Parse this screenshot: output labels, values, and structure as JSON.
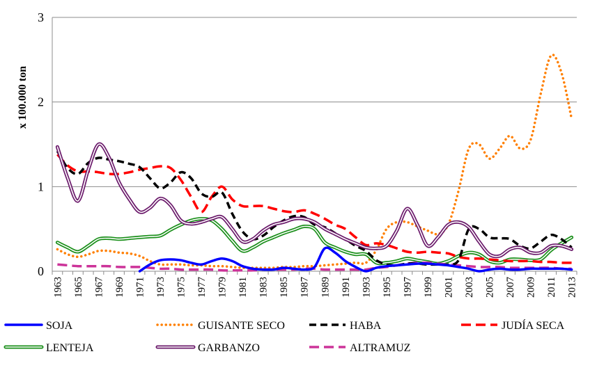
{
  "chart_data": {
    "type": "line",
    "ylabel": "x 100.000 ton",
    "xlabel": "",
    "ylim": [
      0,
      3
    ],
    "yticks": [
      "0",
      "1",
      "2",
      "3"
    ],
    "grid": "horizontal",
    "legend_position": "bottom",
    "x": [
      1963,
      1964,
      1965,
      1966,
      1967,
      1968,
      1969,
      1970,
      1971,
      1972,
      1973,
      1974,
      1975,
      1976,
      1977,
      1978,
      1979,
      1980,
      1981,
      1982,
      1983,
      1984,
      1985,
      1986,
      1987,
      1988,
      1989,
      1990,
      1991,
      1992,
      1993,
      1994,
      1995,
      1996,
      1997,
      1998,
      1999,
      2000,
      2001,
      2002,
      2003,
      2004,
      2005,
      2006,
      2007,
      2008,
      2009,
      2010,
      2011,
      2012,
      2013
    ],
    "xticks": [
      "1963",
      "1965",
      "1967",
      "1969",
      "1971",
      "1973",
      "1975",
      "1977",
      "1979",
      "1981",
      "1983",
      "1985",
      "1987",
      "1989",
      "1991",
      "1993",
      "1995",
      "1997",
      "1999",
      "2001",
      "2003",
      "2005",
      "2007",
      "2009",
      "2011",
      "2013"
    ],
    "series": [
      {
        "name": "SOJA",
        "color": "#0000ff",
        "style": "solid",
        "values": [
          null,
          null,
          null,
          null,
          null,
          null,
          null,
          null,
          0.0,
          0.08,
          0.13,
          0.14,
          0.13,
          0.1,
          0.08,
          0.12,
          0.15,
          0.12,
          0.06,
          0.03,
          0.02,
          0.02,
          0.04,
          0.03,
          0.02,
          0.05,
          0.27,
          0.22,
          0.12,
          0.05,
          0.0,
          0.04,
          0.06,
          0.07,
          0.08,
          0.09,
          0.09,
          0.08,
          0.07,
          0.05,
          0.03,
          0.0,
          0.02,
          0.03,
          0.02,
          0.02,
          0.03,
          0.03,
          0.03,
          0.03,
          0.02
        ]
      },
      {
        "name": "GUISANTE SECO",
        "color": "#ff7f00",
        "style": "dotted",
        "values": [
          0.26,
          0.2,
          0.17,
          0.2,
          0.24,
          0.24,
          0.22,
          0.21,
          0.18,
          0.12,
          0.08,
          0.08,
          0.08,
          0.07,
          0.07,
          0.06,
          0.06,
          0.05,
          0.04,
          0.04,
          0.04,
          0.04,
          0.05,
          0.05,
          0.06,
          0.06,
          0.07,
          0.08,
          0.09,
          0.1,
          0.1,
          0.25,
          0.5,
          0.58,
          0.58,
          0.53,
          0.48,
          0.44,
          0.55,
          0.95,
          1.45,
          1.5,
          1.33,
          1.45,
          1.6,
          1.45,
          1.55,
          2.1,
          2.55,
          2.35,
          1.8
        ]
      },
      {
        "name": "HABA",
        "color": "#000000",
        "style": "dashed",
        "values": [
          1.42,
          1.22,
          1.15,
          1.28,
          1.34,
          1.32,
          1.3,
          1.27,
          1.23,
          1.1,
          0.98,
          1.05,
          1.17,
          1.1,
          0.92,
          0.88,
          0.93,
          0.68,
          0.47,
          0.38,
          0.42,
          0.52,
          0.6,
          0.65,
          0.64,
          0.55,
          0.52,
          0.45,
          0.38,
          0.3,
          0.24,
          0.13,
          0.08,
          0.07,
          0.09,
          0.09,
          0.08,
          0.08,
          0.08,
          0.13,
          0.5,
          0.5,
          0.4,
          0.39,
          0.38,
          0.3,
          0.27,
          0.35,
          0.43,
          0.38,
          0.28
        ]
      },
      {
        "name": "JUDÍA SECA",
        "color": "#ff0000",
        "style": "dashed-long",
        "values": [
          1.38,
          1.25,
          1.18,
          1.18,
          1.17,
          1.15,
          1.15,
          1.17,
          1.2,
          1.22,
          1.24,
          1.22,
          1.08,
          0.88,
          0.7,
          0.88,
          1.0,
          0.85,
          0.77,
          0.77,
          0.77,
          0.74,
          0.71,
          0.7,
          0.72,
          0.68,
          0.62,
          0.55,
          0.5,
          0.4,
          0.31,
          0.33,
          0.31,
          0.27,
          0.23,
          0.22,
          0.23,
          0.22,
          0.21,
          0.17,
          0.15,
          0.15,
          0.14,
          0.13,
          0.12,
          0.12,
          0.12,
          0.11,
          0.11,
          0.1,
          0.1
        ]
      },
      {
        "name": "LENTEJA",
        "color": "#1a8f1a",
        "style": "double",
        "values": [
          0.34,
          0.28,
          0.23,
          0.3,
          0.38,
          0.39,
          0.38,
          0.39,
          0.4,
          0.41,
          0.42,
          0.49,
          0.55,
          0.6,
          0.62,
          0.6,
          0.5,
          0.36,
          0.24,
          0.28,
          0.35,
          0.4,
          0.45,
          0.49,
          0.53,
          0.5,
          0.34,
          0.28,
          0.23,
          0.2,
          0.2,
          0.1,
          0.1,
          0.12,
          0.15,
          0.13,
          0.11,
          0.09,
          0.12,
          0.18,
          0.22,
          0.2,
          0.12,
          0.1,
          0.14,
          0.14,
          0.13,
          0.14,
          0.25,
          0.33,
          0.4
        ]
      },
      {
        "name": "GARBANZO",
        "color": "#6b1a6b",
        "style": "double",
        "values": [
          1.47,
          1.1,
          0.83,
          1.2,
          1.5,
          1.35,
          1.05,
          0.85,
          0.7,
          0.75,
          0.86,
          0.78,
          0.6,
          0.56,
          0.58,
          0.62,
          0.64,
          0.5,
          0.35,
          0.38,
          0.48,
          0.55,
          0.58,
          0.62,
          0.62,
          0.58,
          0.5,
          0.44,
          0.38,
          0.33,
          0.28,
          0.27,
          0.3,
          0.48,
          0.74,
          0.55,
          0.3,
          0.4,
          0.55,
          0.58,
          0.52,
          0.35,
          0.2,
          0.18,
          0.26,
          0.28,
          0.22,
          0.22,
          0.3,
          0.3,
          0.26
        ]
      },
      {
        "name": "ALTRAMUZ",
        "color": "#cc3399",
        "style": "dashed-long",
        "values": [
          0.08,
          0.07,
          0.06,
          0.06,
          0.06,
          0.06,
          0.05,
          0.05,
          0.05,
          0.04,
          0.03,
          0.03,
          0.02,
          0.02,
          0.02,
          0.02,
          0.01,
          0.01,
          0.01,
          0.01,
          0.02,
          0.02,
          0.02,
          0.02,
          0.03,
          0.03,
          0.02,
          0.02,
          0.02,
          0.02,
          0.02,
          0.04,
          0.05,
          0.07,
          0.09,
          0.1,
          0.1,
          0.09,
          0.08,
          0.07,
          0.06,
          0.05,
          0.05,
          0.05,
          0.04,
          0.04,
          0.04,
          0.04,
          0.04,
          0.03,
          0.03
        ]
      }
    ]
  }
}
